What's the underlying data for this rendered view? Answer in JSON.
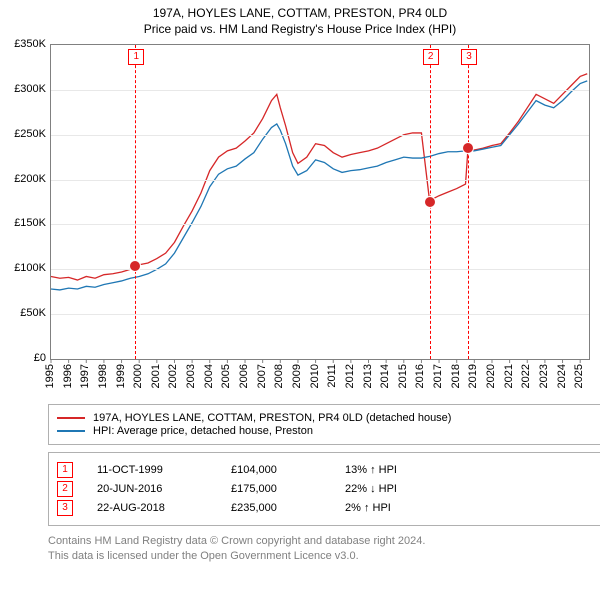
{
  "title": {
    "line1": "197A, HOYLES LANE, COTTAM, PRESTON, PR4 0LD",
    "line2": "Price paid vs. HM Land Registry's House Price Index (HPI)"
  },
  "chart": {
    "type": "line",
    "background_color": "#ffffff",
    "grid_color": "#e8e8e8",
    "axis_color": "#808080",
    "x_years": [
      1995,
      1996,
      1997,
      1998,
      1999,
      2000,
      2001,
      2002,
      2003,
      2004,
      2005,
      2006,
      2007,
      2008,
      2009,
      2010,
      2011,
      2012,
      2013,
      2014,
      2015,
      2016,
      2017,
      2018,
      2019,
      2020,
      2021,
      2022,
      2023,
      2024,
      2025
    ],
    "x_range": [
      1995,
      2025.5
    ],
    "y_ticks": [
      0,
      50000,
      100000,
      150000,
      200000,
      250000,
      300000,
      350000
    ],
    "y_tick_labels": [
      "£0",
      "£50K",
      "£100K",
      "£150K",
      "£200K",
      "£250K",
      "£300K",
      "£350K"
    ],
    "y_range": [
      0,
      350000
    ],
    "series": [
      {
        "name": "price_paid",
        "label": "197A, HOYLES LANE, COTTAM, PRESTON, PR4 0LD (detached house)",
        "color": "#d62728",
        "line_width": 1.3,
        "data": [
          [
            1995.0,
            92000
          ],
          [
            1995.5,
            90000
          ],
          [
            1996.0,
            91000
          ],
          [
            1996.5,
            88000
          ],
          [
            1997.0,
            92000
          ],
          [
            1997.5,
            90000
          ],
          [
            1998.0,
            94000
          ],
          [
            1998.5,
            95000
          ],
          [
            1999.0,
            97000
          ],
          [
            1999.5,
            100000
          ],
          [
            1999.78,
            104000
          ],
          [
            2000.0,
            105000
          ],
          [
            2000.5,
            107000
          ],
          [
            2001.0,
            112000
          ],
          [
            2001.5,
            118000
          ],
          [
            2002.0,
            130000
          ],
          [
            2002.5,
            148000
          ],
          [
            2003.0,
            165000
          ],
          [
            2003.5,
            185000
          ],
          [
            2004.0,
            210000
          ],
          [
            2004.5,
            225000
          ],
          [
            2005.0,
            232000
          ],
          [
            2005.5,
            235000
          ],
          [
            2006.0,
            243000
          ],
          [
            2006.5,
            252000
          ],
          [
            2007.0,
            268000
          ],
          [
            2007.5,
            288000
          ],
          [
            2007.8,
            295000
          ],
          [
            2008.0,
            280000
          ],
          [
            2008.3,
            260000
          ],
          [
            2008.7,
            230000
          ],
          [
            2009.0,
            218000
          ],
          [
            2009.5,
            225000
          ],
          [
            2010.0,
            240000
          ],
          [
            2010.5,
            238000
          ],
          [
            2011.0,
            230000
          ],
          [
            2011.5,
            225000
          ],
          [
            2012.0,
            228000
          ],
          [
            2012.5,
            230000
          ],
          [
            2013.0,
            232000
          ],
          [
            2013.5,
            235000
          ],
          [
            2014.0,
            240000
          ],
          [
            2014.5,
            245000
          ],
          [
            2015.0,
            250000
          ],
          [
            2015.5,
            252000
          ],
          [
            2016.0,
            252000
          ],
          [
            2016.47,
            175000
          ],
          [
            2016.5,
            177000
          ],
          [
            2017.0,
            182000
          ],
          [
            2017.5,
            186000
          ],
          [
            2018.0,
            190000
          ],
          [
            2018.5,
            195000
          ],
          [
            2018.64,
            235000
          ],
          [
            2019.0,
            233000
          ],
          [
            2019.5,
            235000
          ],
          [
            2020.0,
            238000
          ],
          [
            2020.5,
            240000
          ],
          [
            2021.0,
            252000
          ],
          [
            2021.5,
            265000
          ],
          [
            2022.0,
            280000
          ],
          [
            2022.5,
            295000
          ],
          [
            2023.0,
            290000
          ],
          [
            2023.5,
            285000
          ],
          [
            2024.0,
            295000
          ],
          [
            2024.5,
            305000
          ],
          [
            2025.0,
            315000
          ],
          [
            2025.4,
            318000
          ]
        ]
      },
      {
        "name": "hpi",
        "label": "HPI: Average price, detached house, Preston",
        "color": "#1f77b4",
        "line_width": 1.3,
        "data": [
          [
            1995.0,
            78000
          ],
          [
            1995.5,
            77000
          ],
          [
            1996.0,
            79000
          ],
          [
            1996.5,
            78000
          ],
          [
            1997.0,
            81000
          ],
          [
            1997.5,
            80000
          ],
          [
            1998.0,
            83000
          ],
          [
            1998.5,
            85000
          ],
          [
            1999.0,
            87000
          ],
          [
            1999.5,
            90000
          ],
          [
            2000.0,
            92000
          ],
          [
            2000.5,
            95000
          ],
          [
            2001.0,
            100000
          ],
          [
            2001.5,
            106000
          ],
          [
            2002.0,
            118000
          ],
          [
            2002.5,
            135000
          ],
          [
            2003.0,
            152000
          ],
          [
            2003.5,
            170000
          ],
          [
            2004.0,
            192000
          ],
          [
            2004.5,
            206000
          ],
          [
            2005.0,
            212000
          ],
          [
            2005.5,
            215000
          ],
          [
            2006.0,
            223000
          ],
          [
            2006.5,
            230000
          ],
          [
            2007.0,
            245000
          ],
          [
            2007.5,
            258000
          ],
          [
            2007.8,
            262000
          ],
          [
            2008.0,
            255000
          ],
          [
            2008.3,
            240000
          ],
          [
            2008.7,
            215000
          ],
          [
            2009.0,
            205000
          ],
          [
            2009.5,
            210000
          ],
          [
            2010.0,
            222000
          ],
          [
            2010.5,
            219000
          ],
          [
            2011.0,
            212000
          ],
          [
            2011.5,
            208000
          ],
          [
            2012.0,
            210000
          ],
          [
            2012.5,
            211000
          ],
          [
            2013.0,
            213000
          ],
          [
            2013.5,
            215000
          ],
          [
            2014.0,
            219000
          ],
          [
            2014.5,
            222000
          ],
          [
            2015.0,
            225000
          ],
          [
            2015.5,
            224000
          ],
          [
            2016.0,
            224000
          ],
          [
            2016.5,
            226000
          ],
          [
            2017.0,
            229000
          ],
          [
            2017.5,
            231000
          ],
          [
            2018.0,
            231000
          ],
          [
            2018.5,
            232000
          ],
          [
            2019.0,
            232000
          ],
          [
            2019.5,
            234000
          ],
          [
            2020.0,
            236000
          ],
          [
            2020.5,
            238000
          ],
          [
            2021.0,
            250000
          ],
          [
            2021.5,
            262000
          ],
          [
            2022.0,
            275000
          ],
          [
            2022.5,
            288000
          ],
          [
            2023.0,
            283000
          ],
          [
            2023.5,
            280000
          ],
          [
            2024.0,
            288000
          ],
          [
            2024.5,
            298000
          ],
          [
            2025.0,
            307000
          ],
          [
            2025.4,
            310000
          ]
        ]
      }
    ],
    "event_markers": [
      {
        "n": "1",
        "x": 1999.78,
        "y": 104000
      },
      {
        "n": "2",
        "x": 2016.47,
        "y": 175000
      },
      {
        "n": "3",
        "x": 2018.64,
        "y": 235000
      }
    ]
  },
  "legend": {
    "s1": "197A, HOYLES LANE, COTTAM, PRESTON, PR4 0LD (detached house)",
    "s2": "HPI: Average price, detached house, Preston"
  },
  "events": [
    {
      "n": "1",
      "date": "11-OCT-1999",
      "price": "£104,000",
      "delta": "13% ↑ HPI"
    },
    {
      "n": "2",
      "date": "20-JUN-2016",
      "price": "£175,000",
      "delta": "22% ↓ HPI"
    },
    {
      "n": "3",
      "date": "22-AUG-2018",
      "price": "£235,000",
      "delta": "2% ↑ HPI"
    }
  ],
  "attribution": {
    "l1": "Contains HM Land Registry data © Crown copyright and database right 2024.",
    "l2": "This data is licensed under the Open Government Licence v3.0."
  },
  "colors": {
    "red": "#d62728",
    "blue": "#1f77b4",
    "event_red": "#ff0000",
    "grey": "#808080"
  }
}
